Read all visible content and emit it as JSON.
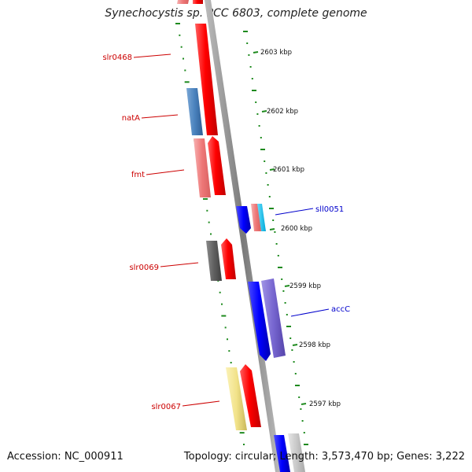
{
  "title": "Synechocystis sp. PCC 6803, complete genome",
  "footer": {
    "accession": "Accession: NC_000911",
    "topology": "Topology: circular; Length: 3,573,470 bp; Genes: 3,222"
  },
  "kbp_ticks": [
    "2603 kbp",
    "2602 kbp",
    "2601 kbp",
    "2600 kbp",
    "2599 kbp",
    "2598 kbp",
    "2597 kbp"
  ],
  "gene_labels": {
    "slr0468": "slr0468",
    "natA": "natA",
    "fmt": "fmt",
    "slr0069": "slr0069",
    "slr0067": "slr0067",
    "sll0051": "sll0051",
    "accC": "accC"
  },
  "colors": {
    "forward_label": "#cc0000",
    "reverse_label": "#0000cc",
    "backbone": "#777777",
    "tick": "#1e8a1e"
  }
}
